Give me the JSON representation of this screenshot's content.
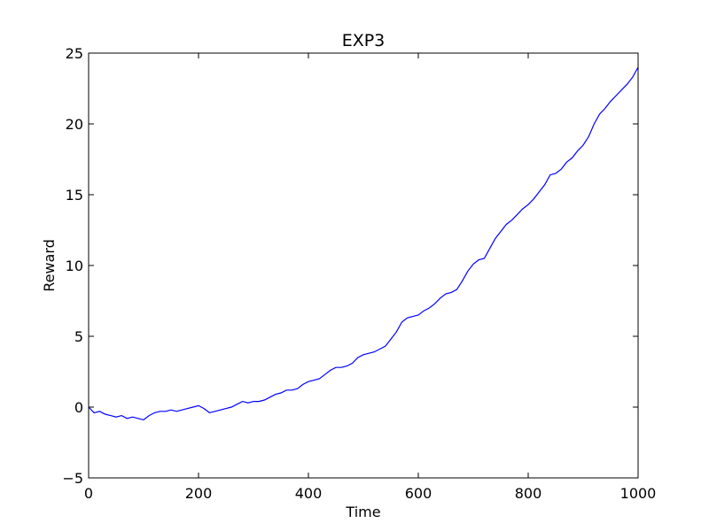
{
  "chart_data": {
    "type": "line",
    "title": "EXP3",
    "xlabel": "Time",
    "ylabel": "Reward",
    "xlim": [
      0,
      1000
    ],
    "ylim": [
      -5,
      25
    ],
    "xticks": [
      0,
      200,
      400,
      600,
      800,
      1000
    ],
    "yticks": [
      -5,
      0,
      5,
      10,
      15,
      20,
      25
    ],
    "grid": false,
    "series_color": "#0000ff",
    "series": [
      {
        "x": [
          0,
          10,
          20,
          30,
          40,
          50,
          60,
          70,
          80,
          90,
          100,
          110,
          120,
          130,
          140,
          150,
          160,
          170,
          180,
          190,
          200,
          210,
          220,
          230,
          240,
          250,
          260,
          270,
          280,
          290,
          300,
          310,
          320,
          330,
          340,
          350,
          360,
          370,
          380,
          390,
          400,
          410,
          420,
          430,
          440,
          450,
          460,
          470,
          480,
          490,
          500,
          510,
          520,
          530,
          540,
          550,
          560,
          570,
          580,
          590,
          600,
          610,
          620,
          630,
          640,
          650,
          660,
          670,
          680,
          690,
          700,
          710,
          720,
          730,
          740,
          750,
          760,
          770,
          780,
          790,
          800,
          810,
          820,
          830,
          840,
          850,
          860,
          870,
          880,
          890,
          900,
          910,
          920,
          930,
          940,
          950,
          960,
          970,
          980,
          990,
          1000
        ],
        "values": [
          0.0,
          -0.4,
          -0.3,
          -0.5,
          -0.6,
          -0.7,
          -0.6,
          -0.8,
          -0.7,
          -0.8,
          -0.9,
          -0.6,
          -0.4,
          -0.3,
          -0.3,
          -0.2,
          -0.3,
          -0.2,
          -0.1,
          0.0,
          0.1,
          -0.1,
          -0.4,
          -0.3,
          -0.2,
          -0.1,
          0.0,
          0.2,
          0.4,
          0.3,
          0.4,
          0.4,
          0.5,
          0.7,
          0.9,
          1.0,
          1.2,
          1.2,
          1.3,
          1.6,
          1.8,
          1.9,
          2.0,
          2.3,
          2.6,
          2.8,
          2.8,
          2.9,
          3.1,
          3.5,
          3.7,
          3.8,
          3.9,
          4.1,
          4.3,
          4.8,
          5.3,
          6.0,
          6.3,
          6.4,
          6.5,
          6.8,
          7.0,
          7.3,
          7.7,
          8.0,
          8.1,
          8.3,
          8.9,
          9.6,
          10.1,
          10.4,
          10.5,
          11.2,
          11.9,
          12.4,
          12.9,
          13.2,
          13.6,
          14.0,
          14.3,
          14.7,
          15.2,
          15.7,
          16.4,
          16.5,
          16.8,
          17.3,
          17.6,
          18.1,
          18.5,
          19.1,
          20.0,
          20.7,
          21.1,
          21.6,
          22.0,
          22.4,
          22.8,
          23.3,
          24.0
        ]
      }
    ]
  }
}
